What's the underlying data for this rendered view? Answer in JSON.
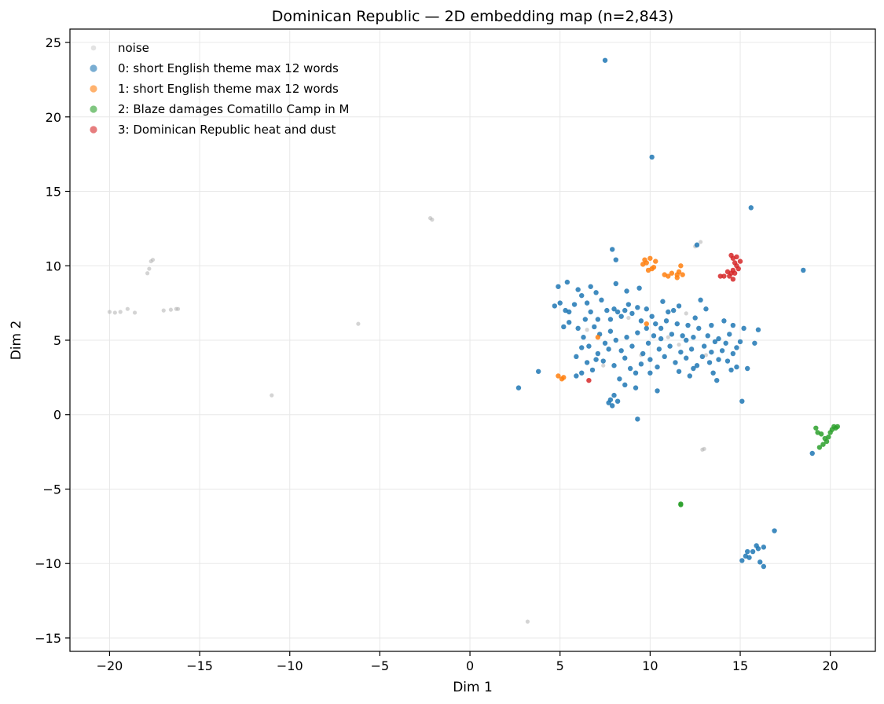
{
  "chart_data": {
    "type": "scatter",
    "title": "Dominican Republic — 2D embedding map (n=2,843)",
    "xlabel": "Dim 1",
    "ylabel": "Dim 2",
    "xlim": [
      -22.2,
      22.5
    ],
    "ylim": [
      -15.9,
      25.9
    ],
    "xticks": [
      -20,
      -15,
      -10,
      -5,
      0,
      5,
      10,
      15,
      20
    ],
    "yticks": [
      -15,
      -10,
      -5,
      0,
      5,
      10,
      15,
      20,
      25
    ],
    "xtick_labels": [
      "−20",
      "−15",
      "−10",
      "−5",
      "0",
      "5",
      "10",
      "15",
      "20"
    ],
    "ytick_labels": [
      "−15",
      "−10",
      "−5",
      "0",
      "5",
      "10",
      "15",
      "20",
      "25"
    ],
    "grid": true,
    "legend_position": "top-left",
    "series": [
      {
        "name": "noise",
        "color": "#b0b0b0",
        "points": [
          [
            -20.0,
            6.9
          ],
          [
            -19.7,
            6.85
          ],
          [
            -19.4,
            6.9
          ],
          [
            -19.0,
            7.1
          ],
          [
            -18.6,
            6.85
          ],
          [
            -17.7,
            10.3
          ],
          [
            -17.6,
            10.4
          ],
          [
            -17.8,
            9.8
          ],
          [
            -17.9,
            9.5
          ],
          [
            -17.0,
            7.0
          ],
          [
            -16.6,
            7.05
          ],
          [
            -16.3,
            7.1
          ],
          [
            -16.2,
            7.1
          ],
          [
            -11.0,
            1.3
          ],
          [
            -6.2,
            6.1
          ],
          [
            -2.2,
            13.2
          ],
          [
            -2.1,
            13.1
          ],
          [
            3.2,
            -13.9
          ],
          [
            12.8,
            11.6
          ],
          [
            13.0,
            -2.3
          ],
          [
            12.9,
            -2.35
          ],
          [
            12.5,
            11.3
          ],
          [
            12.0,
            6.8
          ],
          [
            11.0,
            5.2
          ],
          [
            9.5,
            4.0
          ],
          [
            8.8,
            6.5
          ],
          [
            13.1,
            4.0
          ],
          [
            6.5,
            5.7
          ],
          [
            7.4,
            3.3
          ],
          [
            11.6,
            4.7
          ]
        ]
      },
      {
        "name": "0: short English theme max 12 words",
        "color": "#1f77b4",
        "points": [
          [
            7.5,
            23.8
          ],
          [
            10.1,
            17.3
          ],
          [
            15.6,
            13.9
          ],
          [
            18.5,
            9.7
          ],
          [
            12.6,
            11.4
          ],
          [
            7.9,
            11.1
          ],
          [
            8.1,
            10.4
          ],
          [
            2.7,
            1.8
          ],
          [
            3.8,
            2.9
          ],
          [
            9.3,
            -0.3
          ],
          [
            15.1,
            0.9
          ],
          [
            19.0,
            -2.6
          ],
          [
            16.9,
            -7.8
          ],
          [
            15.3,
            -9.5
          ],
          [
            15.7,
            -9.2
          ],
          [
            16.0,
            -9.0
          ],
          [
            16.3,
            -10.2
          ],
          [
            15.1,
            -9.8
          ],
          [
            15.9,
            -8.8
          ],
          [
            16.3,
            -8.9
          ],
          [
            15.5,
            -9.6
          ],
          [
            16.1,
            -9.9
          ],
          [
            15.4,
            -9.2
          ],
          [
            4.7,
            7.3
          ],
          [
            5.0,
            7.5
          ],
          [
            5.3,
            7.0
          ],
          [
            5.5,
            6.9
          ],
          [
            5.8,
            7.4
          ],
          [
            6.0,
            8.4
          ],
          [
            6.2,
            8.0
          ],
          [
            6.5,
            7.5
          ],
          [
            6.7,
            8.6
          ],
          [
            7.0,
            8.2
          ],
          [
            7.3,
            7.7
          ],
          [
            7.6,
            7.0
          ],
          [
            7.8,
            6.4
          ],
          [
            8.0,
            7.1
          ],
          [
            8.2,
            6.9
          ],
          [
            8.4,
            6.6
          ],
          [
            8.6,
            7.0
          ],
          [
            8.8,
            7.4
          ],
          [
            9.0,
            6.8
          ],
          [
            9.3,
            7.2
          ],
          [
            9.5,
            6.3
          ],
          [
            9.8,
            7.1
          ],
          [
            10.1,
            6.6
          ],
          [
            10.3,
            6.1
          ],
          [
            10.6,
            5.8
          ],
          [
            10.9,
            6.3
          ],
          [
            11.2,
            5.4
          ],
          [
            11.5,
            6.1
          ],
          [
            11.8,
            5.3
          ],
          [
            12.1,
            6.0
          ],
          [
            12.4,
            5.2
          ],
          [
            12.7,
            5.8
          ],
          [
            13.0,
            4.6
          ],
          [
            13.2,
            5.3
          ],
          [
            13.4,
            4.2
          ],
          [
            13.6,
            4.9
          ],
          [
            13.8,
            5.1
          ],
          [
            14.0,
            4.3
          ],
          [
            14.2,
            4.8
          ],
          [
            14.4,
            5.4
          ],
          [
            14.6,
            4.1
          ],
          [
            14.8,
            4.5
          ],
          [
            15.0,
            4.9
          ],
          [
            15.2,
            5.8
          ],
          [
            15.4,
            3.1
          ],
          [
            16.0,
            5.7
          ],
          [
            15.8,
            4.8
          ],
          [
            6.0,
            5.8
          ],
          [
            6.3,
            5.2
          ],
          [
            6.6,
            4.6
          ],
          [
            6.9,
            5.9
          ],
          [
            7.2,
            5.4
          ],
          [
            7.5,
            4.8
          ],
          [
            7.8,
            5.6
          ],
          [
            8.1,
            5.0
          ],
          [
            8.4,
            4.3
          ],
          [
            8.7,
            5.2
          ],
          [
            9.0,
            4.6
          ],
          [
            9.3,
            5.5
          ],
          [
            9.6,
            4.1
          ],
          [
            9.9,
            4.8
          ],
          [
            10.2,
            5.3
          ],
          [
            10.5,
            4.4
          ],
          [
            10.8,
            3.9
          ],
          [
            11.1,
            4.6
          ],
          [
            11.4,
            3.5
          ],
          [
            11.7,
            4.2
          ],
          [
            12.0,
            3.8
          ],
          [
            12.3,
            4.4
          ],
          [
            12.6,
            3.3
          ],
          [
            12.9,
            3.9
          ],
          [
            13.3,
            3.5
          ],
          [
            13.5,
            2.8
          ],
          [
            13.7,
            2.3
          ],
          [
            14.3,
            3.6
          ],
          [
            14.8,
            3.2
          ],
          [
            5.9,
            3.9
          ],
          [
            6.2,
            4.5
          ],
          [
            6.5,
            3.5
          ],
          [
            6.8,
            3.0
          ],
          [
            7.1,
            4.1
          ],
          [
            7.4,
            3.6
          ],
          [
            7.7,
            4.4
          ],
          [
            8.0,
            3.3
          ],
          [
            8.3,
            2.4
          ],
          [
            8.6,
            3.8
          ],
          [
            8.9,
            3.1
          ],
          [
            9.2,
            2.8
          ],
          [
            9.5,
            3.4
          ],
          [
            10.0,
            2.8
          ],
          [
            10.4,
            3.2
          ],
          [
            7.8,
            1.0
          ],
          [
            8.0,
            1.3
          ],
          [
            7.7,
            0.8
          ],
          [
            8.2,
            0.9
          ],
          [
            7.9,
            0.6
          ],
          [
            6.2,
            2.8
          ],
          [
            5.9,
            2.6
          ],
          [
            8.6,
            2.0
          ],
          [
            10.4,
            1.6
          ],
          [
            11.6,
            2.9
          ],
          [
            12.2,
            2.6
          ],
          [
            9.2,
            1.8
          ],
          [
            5.5,
            6.2
          ],
          [
            5.2,
            5.9
          ],
          [
            6.7,
            6.9
          ],
          [
            7.1,
            6.4
          ],
          [
            9.4,
            8.5
          ],
          [
            8.7,
            8.3
          ],
          [
            11.6,
            7.3
          ],
          [
            12.8,
            7.7
          ],
          [
            13.1,
            7.1
          ],
          [
            14.1,
            6.3
          ],
          [
            10.7,
            7.6
          ],
          [
            11.0,
            6.9
          ],
          [
            9.8,
            5.8
          ],
          [
            10.6,
            5.1
          ],
          [
            12.5,
            6.5
          ],
          [
            13.4,
            6.0
          ],
          [
            14.6,
            6.0
          ],
          [
            11.3,
            7.0
          ],
          [
            10.0,
            3.7
          ],
          [
            12.0,
            5.0
          ],
          [
            6.4,
            6.4
          ],
          [
            7.0,
            3.7
          ],
          [
            14.5,
            3.0
          ],
          [
            13.8,
            3.7
          ],
          [
            12.4,
            3.1
          ],
          [
            8.1,
            8.8
          ],
          [
            5.4,
            8.9
          ],
          [
            4.9,
            8.6
          ]
        ]
      },
      {
        "name": "1: short English theme max 12 words",
        "color": "#ff7f0e",
        "points": [
          [
            9.8,
            10.2
          ],
          [
            10.0,
            10.5
          ],
          [
            10.2,
            9.9
          ],
          [
            9.9,
            9.7
          ],
          [
            10.1,
            9.8
          ],
          [
            10.3,
            10.3
          ],
          [
            9.6,
            10.1
          ],
          [
            9.7,
            10.4
          ],
          [
            10.8,
            9.4
          ],
          [
            11.0,
            9.3
          ],
          [
            11.2,
            9.5
          ],
          [
            11.5,
            9.2
          ],
          [
            11.6,
            9.6
          ],
          [
            11.8,
            9.4
          ],
          [
            11.7,
            10.0
          ],
          [
            11.5,
            9.4
          ],
          [
            5.1,
            2.4
          ],
          [
            5.2,
            2.5
          ],
          [
            4.9,
            2.6
          ],
          [
            7.1,
            5.2
          ],
          [
            9.8,
            6.1
          ]
        ]
      },
      {
        "name": "2: Blaze damages Comatillo Camp in M",
        "color": "#2ca02c",
        "points": [
          [
            19.2,
            -0.9
          ],
          [
            19.3,
            -1.2
          ],
          [
            19.5,
            -1.3
          ],
          [
            19.7,
            -1.6
          ],
          [
            19.8,
            -1.8
          ],
          [
            19.6,
            -2.0
          ],
          [
            19.4,
            -2.2
          ],
          [
            19.9,
            -1.5
          ],
          [
            20.0,
            -1.2
          ],
          [
            20.1,
            -1.0
          ],
          [
            20.2,
            -0.8
          ],
          [
            20.4,
            -0.8
          ],
          [
            20.3,
            -0.9
          ],
          [
            11.7,
            -6.0
          ],
          [
            11.7,
            -6.05
          ]
        ]
      },
      {
        "name": "3: Dominican Republic heat and dust",
        "color": "#d62728",
        "points": [
          [
            14.5,
            10.7
          ],
          [
            14.6,
            10.5
          ],
          [
            14.7,
            10.2
          ],
          [
            14.8,
            10.0
          ],
          [
            14.9,
            9.8
          ],
          [
            15.0,
            10.3
          ],
          [
            14.6,
            9.7
          ],
          [
            14.5,
            9.5
          ],
          [
            14.4,
            9.3
          ],
          [
            14.3,
            9.6
          ],
          [
            14.1,
            9.3
          ],
          [
            13.9,
            9.3
          ],
          [
            14.7,
            9.5
          ],
          [
            14.8,
            10.6
          ],
          [
            14.6,
            9.1
          ],
          [
            6.6,
            2.3
          ]
        ]
      }
    ]
  }
}
